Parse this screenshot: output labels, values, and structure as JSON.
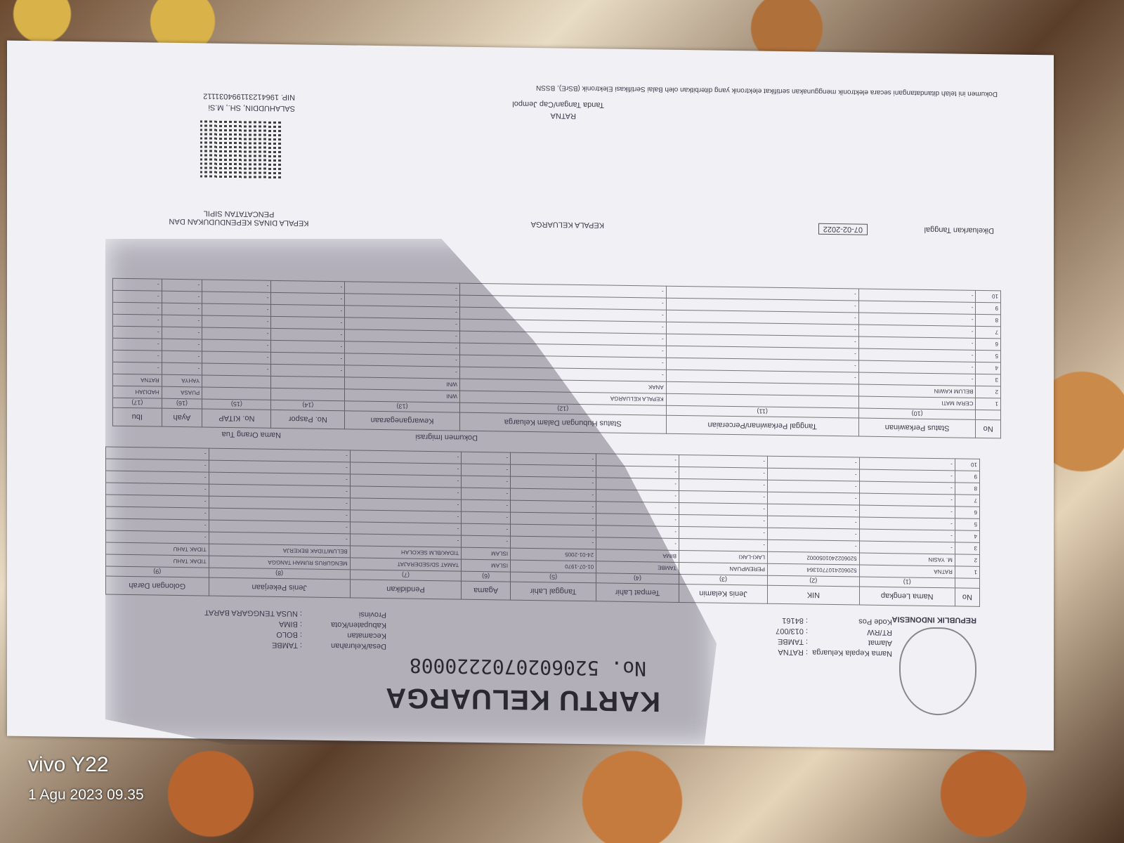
{
  "document": {
    "title": "KARTU KELUARGA",
    "number": "No. 5206020702220008",
    "country": "REPUBLIK INDONESIA",
    "header_left": [
      {
        "label": "Nama Kepala Keluarga",
        "value": "RATNA"
      },
      {
        "label": "Alamat",
        "value": "TAMBE"
      },
      {
        "label": "RT/RW",
        "value": "013/007"
      },
      {
        "label": "Kode Pos",
        "value": "84161"
      }
    ],
    "header_right": [
      {
        "label": "Desa/Kelurahan",
        "value": "TAMBE"
      },
      {
        "label": "Kecamatan",
        "value": "BOLO"
      },
      {
        "label": "Kabupaten/Kota",
        "value": "BIMA"
      },
      {
        "label": "Provinsi",
        "value": "NUSA TENGGARA BARAT"
      }
    ],
    "table1": {
      "headers": [
        "No",
        "Nama Lengkap",
        "NIK",
        "Jenis Kelamin",
        "Tempat Lahir",
        "Tanggal Lahir",
        "Agama",
        "Pendidikan",
        "Jenis Pekerjaan",
        "Golongan Darah"
      ],
      "numbers": [
        "",
        "(1)",
        "(2)",
        "(3)",
        "(4)",
        "(5)",
        "(6)",
        "(7)",
        "(8)",
        "(9)"
      ],
      "rows": [
        [
          "1",
          "RATNA",
          "5206024107701364",
          "PEREMPUAN",
          "TAMBE",
          "01-07-1970",
          "ISLAM",
          "TAMAT SD/SEDERAJAT",
          "MENGURUS RUMAH TANGGA",
          "TIDAK TAHU"
        ],
        [
          "2",
          "M. YASIN",
          "5206022401050002",
          "LAKI-LAKI",
          "BIMA",
          "24-01-2005",
          "ISLAM",
          "TIDAK/BLM SEKOLAH",
          "BELUM/TIDAK BEKERJA",
          "TIDAK TAHU"
        ],
        [
          "3",
          "-",
          "-",
          "-",
          "-",
          "-",
          "-",
          "-",
          "-",
          "-"
        ],
        [
          "4",
          "-",
          "-",
          "-",
          "-",
          "-",
          "-",
          "-",
          "-",
          "-"
        ],
        [
          "5",
          "-",
          "-",
          "-",
          "-",
          "-",
          "-",
          "-",
          "-",
          "-"
        ],
        [
          "6",
          "-",
          "-",
          "-",
          "-",
          "-",
          "-",
          "-",
          "-",
          "-"
        ],
        [
          "7",
          "-",
          "-",
          "-",
          "-",
          "-",
          "-",
          "-",
          "-",
          "-"
        ],
        [
          "8",
          "-",
          "-",
          "-",
          "-",
          "-",
          "-",
          "-",
          "-",
          "-"
        ],
        [
          "9",
          "-",
          "-",
          "-",
          "-",
          "-",
          "-",
          "-",
          "-",
          "-"
        ],
        [
          "10",
          "-",
          "-",
          "-",
          "-",
          "-",
          "-",
          "-",
          "-",
          "-"
        ]
      ]
    },
    "table2": {
      "headers": [
        "No",
        "Status Perkawinan",
        "Tanggal Perkawinan/Perceraian",
        "Status Hubungan Dalam Keluarga",
        "Kewarganegaraan",
        "No. Paspor",
        "No. KITAP",
        "Ayah",
        "Ibu"
      ],
      "group_headers": {
        "imigrasi": "Dokumen Imigrasi",
        "orang_tua": "Nama Orang Tua"
      },
      "numbers": [
        "",
        "(10)",
        "(11)",
        "(12)",
        "(13)",
        "(14)",
        "(15)",
        "(16)",
        "(17)"
      ],
      "rows": [
        [
          "1",
          "CERAI MATI",
          "",
          "KEPALA KELUARGA",
          "WNI",
          "",
          "",
          "PUASA",
          "HADIJAH"
        ],
        [
          "2",
          "BELUM KAWIN",
          "",
          "ANAK",
          "WNI",
          "",
          "",
          "YAHYA",
          "RATNA"
        ],
        [
          "3",
          "-",
          "-",
          "-",
          "-",
          "-",
          "-",
          "-",
          "-"
        ],
        [
          "4",
          "-",
          "-",
          "-",
          "-",
          "-",
          "-",
          "-",
          "-"
        ],
        [
          "5",
          "-",
          "-",
          "-",
          "-",
          "-",
          "-",
          "-",
          "-"
        ],
        [
          "6",
          "-",
          "-",
          "-",
          "-",
          "-",
          "-",
          "-",
          "-"
        ],
        [
          "7",
          "-",
          "-",
          "-",
          "-",
          "-",
          "-",
          "-",
          "-"
        ],
        [
          "8",
          "-",
          "-",
          "-",
          "-",
          "-",
          "-",
          "-",
          "-"
        ],
        [
          "9",
          "-",
          "-",
          "-",
          "-",
          "-",
          "-",
          "-",
          "-"
        ],
        [
          "10",
          "-",
          "-",
          "-",
          "-",
          "-",
          "-",
          "-",
          "-"
        ]
      ]
    },
    "footer": {
      "issued_label": "Dikeluarkan Tanggal",
      "issued_date": "07-02-2022",
      "head_label": "KEPALA KELUARGA",
      "head_name": "RATNA",
      "sign_label": "Tanda Tangan/Cap Jempol",
      "official_title": "KEPALA DINAS KEPENDUDUKAN DAN PENCATATAN SIPIL",
      "official_name": "SALAHUDDIN, SH., M.Si",
      "official_nip": "NIP. 196412311994031112",
      "note": "Dokumen ini telah ditandatangani secara elektronik menggunakan sertifikat elektronik yang diterbitkan oleh Balai Sertifikasi Elektronik (BSrE), BSSN"
    }
  },
  "camera_watermark": {
    "device": "vivo Y22",
    "timestamp": "1 Agu 2023 09.35"
  }
}
